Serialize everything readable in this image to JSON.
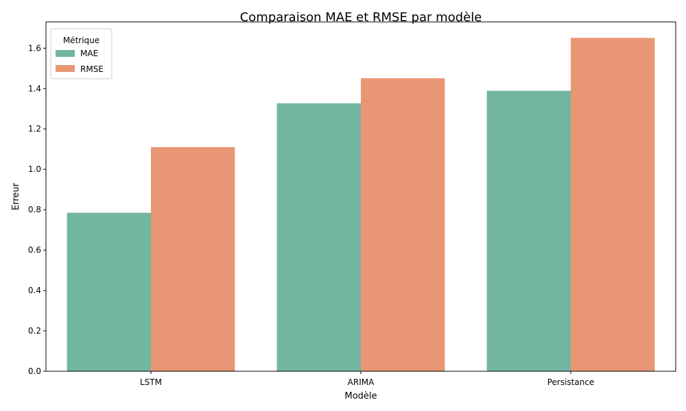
{
  "chart_data": {
    "type": "bar",
    "title": "Comparaison MAE et RMSE par modèle",
    "xlabel": "Modèle",
    "ylabel": "Erreur",
    "categories": [
      "LSTM",
      "ARIMA",
      "Persistance"
    ],
    "series": [
      {
        "name": "MAE",
        "values": [
          0.785,
          1.327,
          1.389
        ],
        "color": "#72b6a1"
      },
      {
        "name": "RMSE",
        "values": [
          1.11,
          1.451,
          1.651
        ],
        "color": "#e99675"
      }
    ],
    "ylim": [
      0,
      1.73
    ],
    "yticks": [
      "0.0",
      "0.2",
      "0.4",
      "0.6",
      "0.8",
      "1.0",
      "1.2",
      "1.4",
      "1.6"
    ],
    "grid": false,
    "legend": {
      "title": "Métrique",
      "placement": "top-left"
    }
  }
}
